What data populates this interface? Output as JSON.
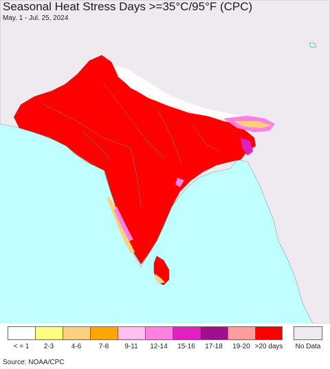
{
  "header": {
    "title": "Seasonal Heat Stress Days >=35°C/95°F (CPC)",
    "subtitle": "May. 1 - Jul. 25, 2024"
  },
  "map": {
    "ocean_color": "#bfffff",
    "land_color": "#efeaf0",
    "heat_color": "#ff0000",
    "border_color": "#777777"
  },
  "legend": {
    "items": [
      {
        "label": "< = 1",
        "color": "#ffffff"
      },
      {
        "label": "2-3",
        "color": "#ffff80"
      },
      {
        "label": "4-6",
        "color": "#ffd080"
      },
      {
        "label": "7-8",
        "color": "#ffa500"
      },
      {
        "label": "9-11",
        "color": "#ffc0f0"
      },
      {
        "label": "12-14",
        "color": "#ff80e0"
      },
      {
        "label": "15-16",
        "color": "#e020c0"
      },
      {
        "label": "17-18",
        "color": "#a0108c"
      },
      {
        "label": "19-20",
        "color": "#ff9c9c"
      },
      {
        "label": ">20 days",
        "color": "#ff0000"
      }
    ],
    "no_data": {
      "label": "No Data",
      "color": "#efeaf0"
    }
  },
  "footer": {
    "source": "Source: NOAA/CPC"
  }
}
